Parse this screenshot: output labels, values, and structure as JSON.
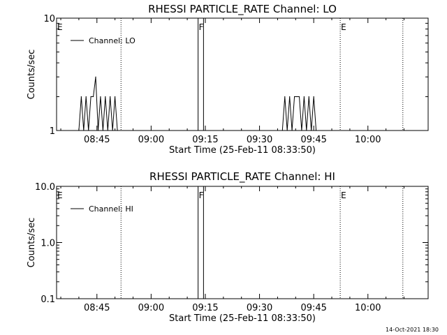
{
  "footer_stamp": "14-Oct-2021 18:30",
  "chart_data": [
    {
      "type": "line",
      "title": "RHESSI PARTICLE_RATE Channel: LO",
      "xlabel": "Start Time (25-Feb-11 08:33:50)",
      "ylabel": "Counts/sec",
      "yscale": "log",
      "ylim": [
        1,
        10
      ],
      "y_tick_labels": [
        "1",
        "10"
      ],
      "xlim": [
        "08:33:50",
        "10:16:40"
      ],
      "x_tick_labels": [
        "08:45",
        "09:00",
        "09:15",
        "09:30",
        "09:45",
        "10:00"
      ],
      "legend": {
        "label": "Channel: LO",
        "position": "upper-left"
      },
      "grid": false,
      "markers": [
        {
          "label": "E",
          "time": "08:33:50",
          "style": "dotted"
        },
        {
          "label": "",
          "time": "08:51:40",
          "style": "dotted"
        },
        {
          "label": "F",
          "time": "09:13:00",
          "style": "solid"
        },
        {
          "label": "",
          "time": "09:14:30",
          "style": "solid"
        },
        {
          "label": "E",
          "time": "09:52:20",
          "style": "dotted"
        },
        {
          "label": "",
          "time": "10:09:40",
          "style": "dotted"
        }
      ],
      "series": [
        {
          "name": "Channel: LO",
          "bursts": [
            {
              "times": [
                "08:40:00",
                "08:40:40",
                "08:41:20",
                "08:42:00",
                "08:42:40",
                "08:43:20",
                "08:44:00",
                "08:44:40",
                "08:45:20",
                "08:46:00",
                "08:46:40",
                "08:47:20",
                "08:48:00",
                "08:48:40",
                "08:49:20",
                "08:50:00",
                "08:50:40"
              ],
              "values": [
                1,
                2,
                1,
                2,
                1,
                2,
                2,
                3,
                1,
                2,
                1,
                2,
                1,
                2,
                1,
                2,
                1
              ]
            },
            {
              "times": [
                "09:36:20",
                "09:37:00",
                "09:37:40",
                "09:38:20",
                "09:39:00",
                "09:39:40",
                "09:40:20",
                "09:41:00",
                "09:41:40",
                "09:42:20",
                "09:43:00",
                "09:43:40",
                "09:44:20",
                "09:45:00",
                "09:45:40"
              ],
              "values": [
                1,
                2,
                1,
                2,
                1,
                2,
                2,
                2,
                1,
                2,
                1,
                2,
                1,
                2,
                1
              ]
            }
          ]
        }
      ]
    },
    {
      "type": "line",
      "title": "RHESSI PARTICLE_RATE Channel: HI",
      "xlabel": "Start Time (25-Feb-11 08:33:50)",
      "ylabel": "Counts/sec",
      "yscale": "log",
      "ylim": [
        0.1,
        10
      ],
      "y_tick_labels": [
        "0.1",
        "1.0",
        "10.0"
      ],
      "xlim": [
        "08:33:50",
        "10:16:40"
      ],
      "x_tick_labels": [
        "08:45",
        "09:00",
        "09:15",
        "09:30",
        "09:45",
        "10:00"
      ],
      "legend": {
        "label": "Channel: HI",
        "position": "upper-left"
      },
      "grid": false,
      "markers": [
        {
          "label": "E",
          "time": "08:33:50",
          "style": "dotted"
        },
        {
          "label": "",
          "time": "08:51:40",
          "style": "dotted"
        },
        {
          "label": "F",
          "time": "09:13:00",
          "style": "solid"
        },
        {
          "label": "",
          "time": "09:14:30",
          "style": "solid"
        },
        {
          "label": "E",
          "time": "09:52:20",
          "style": "dotted"
        },
        {
          "label": "",
          "time": "10:09:40",
          "style": "dotted"
        }
      ],
      "series": [
        {
          "name": "Channel: HI",
          "bursts": []
        }
      ]
    }
  ]
}
